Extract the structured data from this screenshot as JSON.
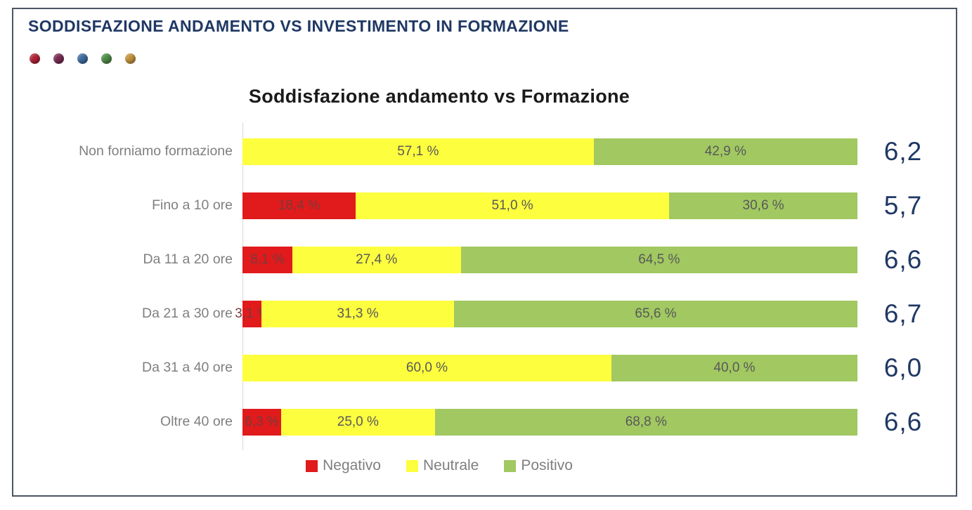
{
  "header": {
    "title": "SODDISFAZIONE ANDAMENTO VS INVESTIMENTO IN FORMAZIONE",
    "dots": [
      {
        "name": "dot-red",
        "color": "#ae2336"
      },
      {
        "name": "dot-maroon",
        "color": "#782a52"
      },
      {
        "name": "dot-blue",
        "color": "#3e6b9e"
      },
      {
        "name": "dot-green",
        "color": "#4c8b48"
      },
      {
        "name": "dot-amber",
        "color": "#c2923c"
      }
    ]
  },
  "chart_data": {
    "type": "bar",
    "orientation": "horizontal",
    "stacked": true,
    "title": "Soddisfazione andamento vs Formazione",
    "categories": [
      "Non forniamo formazione",
      "Fino a 10 ore",
      "Da 11 a 20 ore",
      "Da 21 a 30 ore",
      "Da 31 a 40 ore",
      "Oltre 40 ore"
    ],
    "series": [
      {
        "name": "Negativo",
        "color": "#e11a1c",
        "values": [
          0,
          18.4,
          8.1,
          3.1,
          0,
          6.3
        ],
        "labels": [
          "",
          "18,4 %",
          "8,1 %",
          "3,1 %",
          "",
          "6,3 %"
        ]
      },
      {
        "name": "Neutrale",
        "color": "#fdfe3e",
        "values": [
          57.1,
          51.0,
          27.4,
          31.3,
          60.0,
          25.0
        ],
        "labels": [
          "57,1 %",
          "51,0 %",
          "27,4 %",
          "31,3 %",
          "60,0 %",
          "25,0 %"
        ]
      },
      {
        "name": "Positivo",
        "color": "#a1c861",
        "values": [
          42.9,
          30.6,
          64.5,
          65.6,
          40.0,
          68.8
        ],
        "labels": [
          "42,9 %",
          "30,6 %",
          "64,5 %",
          "65,6 %",
          "40,0 %",
          "68,8 %"
        ]
      }
    ],
    "row_values": [
      "6,2",
      "5,7",
      "6,6",
      "6,7",
      "6,0",
      "6,6"
    ],
    "xlim": [
      0,
      100
    ],
    "grid": false,
    "legend_position": "bottom"
  },
  "colors": {
    "frame_border": "#4d5464",
    "page_title": "#1f3864",
    "chart_title": "#1a1a1a",
    "category_label": "#7f7f7f",
    "segment_label": "#595959",
    "segment_label_on_negative": "#7a3a3a",
    "row_value": "#1f3864",
    "axis_line": "#d9d9d9",
    "legend_text": "#7f7f7f"
  }
}
